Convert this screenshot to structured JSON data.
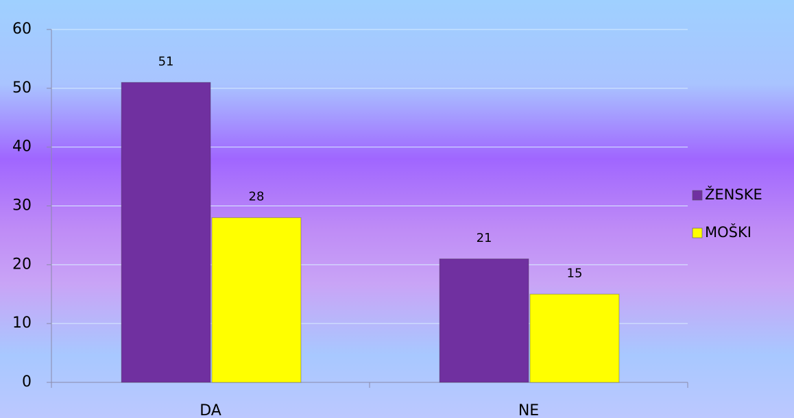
{
  "chart_data": {
    "type": "bar",
    "categories": [
      "DA",
      "NE"
    ],
    "series": [
      {
        "name": "ŽENSKE",
        "color": "#7030a0",
        "values": [
          51,
          21
        ]
      },
      {
        "name": "MOŠKI",
        "color": "#ffff00",
        "values": [
          28,
          15
        ]
      }
    ],
    "ylim": [
      0,
      60
    ],
    "yticks": [
      0,
      10,
      20,
      30,
      40,
      50,
      60
    ],
    "grid": true,
    "legend": "right"
  }
}
